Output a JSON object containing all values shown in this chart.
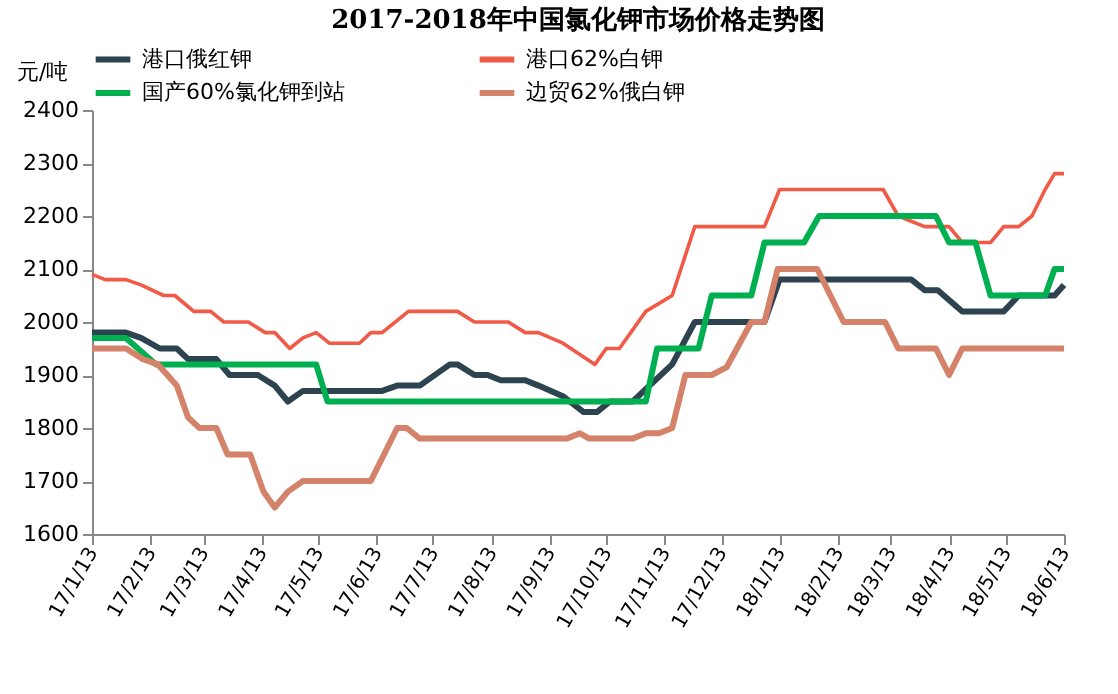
{
  "chart_data": {
    "type": "line",
    "title": "2017-2018年中国氯化钾市场价格走势图",
    "ylabel": "元/吨",
    "ylim": [
      1600,
      2400
    ],
    "yticks": [
      1600,
      1700,
      1800,
      1900,
      2000,
      2100,
      2200,
      2300,
      2400
    ],
    "xlim": [
      "2017-01-13",
      "2018-06-13"
    ],
    "xticks": [
      {
        "value": "2017-01-13",
        "label": "17/1/13"
      },
      {
        "value": "2017-02-13",
        "label": "17/2/13"
      },
      {
        "value": "2017-03-13",
        "label": "17/3/13"
      },
      {
        "value": "2017-04-13",
        "label": "17/4/13"
      },
      {
        "value": "2017-05-13",
        "label": "17/5/13"
      },
      {
        "value": "2017-06-13",
        "label": "17/6/13"
      },
      {
        "value": "2017-07-13",
        "label": "17/7/13"
      },
      {
        "value": "2017-08-13",
        "label": "17/8/13"
      },
      {
        "value": "2017-09-13",
        "label": "17/9/13"
      },
      {
        "value": "2017-10-13",
        "label": "17/10/13"
      },
      {
        "value": "2017-11-13",
        "label": "17/11/13"
      },
      {
        "value": "2017-12-13",
        "label": "17/12/13"
      },
      {
        "value": "2018-01-13",
        "label": "18/1/13"
      },
      {
        "value": "2018-02-13",
        "label": "18/2/13"
      },
      {
        "value": "2018-03-13",
        "label": "18/3/13"
      },
      {
        "value": "2018-04-13",
        "label": "18/4/13"
      },
      {
        "value": "2018-05-13",
        "label": "18/5/13"
      },
      {
        "value": "2018-06-13",
        "label": "18/6/13"
      }
    ],
    "grid": false,
    "legend": "top",
    "marker": "none",
    "line_style": "solid",
    "series": [
      {
        "name": "港口俄红钾",
        "color": "#2e4350",
        "x": [
          "2017-01-13",
          "2017-01-31",
          "2017-02-08",
          "2017-02-18",
          "2017-02-27",
          "2017-03-05",
          "2017-03-20",
          "2017-03-27",
          "2017-04-11",
          "2017-04-20",
          "2017-04-27",
          "2017-05-05",
          "2017-06-16",
          "2017-06-24",
          "2017-07-06",
          "2017-07-22",
          "2017-07-26",
          "2017-08-04",
          "2017-08-11",
          "2017-08-18",
          "2017-08-31",
          "2017-09-07",
          "2017-09-20",
          "2017-10-01",
          "2017-10-08",
          "2017-10-15",
          "2017-10-27",
          "2017-11-17",
          "2017-11-29",
          "2018-01-05",
          "2018-01-13",
          "2018-03-24",
          "2018-03-31",
          "2018-04-07",
          "2018-04-20",
          "2018-05-12",
          "2018-05-20",
          "2018-06-08",
          "2018-06-13"
        ],
        "values": [
          1980,
          1980,
          1970,
          1950,
          1950,
          1930,
          1930,
          1900,
          1900,
          1880,
          1850,
          1870,
          1870,
          1880,
          1880,
          1920,
          1920,
          1900,
          1900,
          1890,
          1890,
          1880,
          1860,
          1830,
          1830,
          1850,
          1850,
          1920,
          2000,
          2000,
          2080,
          2080,
          2060,
          2060,
          2020,
          2020,
          2050,
          2050,
          2070
        ]
      },
      {
        "name": "港口62%白钾",
        "color": "#f05a46",
        "x": [
          "2017-01-13",
          "2017-01-20",
          "2017-01-31",
          "2017-02-08",
          "2017-02-20",
          "2017-02-26",
          "2017-03-08",
          "2017-03-17",
          "2017-03-24",
          "2017-04-06",
          "2017-04-15",
          "2017-04-20",
          "2017-04-28",
          "2017-05-05",
          "2017-05-12",
          "2017-05-19",
          "2017-06-04",
          "2017-06-10",
          "2017-06-16",
          "2017-06-30",
          "2017-07-26",
          "2017-08-04",
          "2017-08-22",
          "2017-08-31",
          "2017-09-07",
          "2017-09-20",
          "2017-10-07",
          "2017-10-13",
          "2017-10-20",
          "2017-11-03",
          "2017-11-17",
          "2017-11-29",
          "2018-01-05",
          "2018-01-13",
          "2018-03-09",
          "2018-03-17",
          "2018-03-31",
          "2018-04-13",
          "2018-04-20",
          "2018-05-05",
          "2018-05-12",
          "2018-05-20",
          "2018-05-27",
          "2018-06-03",
          "2018-06-08",
          "2018-06-13"
        ],
        "values": [
          2090,
          2080,
          2080,
          2070,
          2050,
          2050,
          2020,
          2020,
          2000,
          2000,
          1980,
          1980,
          1950,
          1970,
          1980,
          1960,
          1960,
          1980,
          1980,
          2020,
          2020,
          2000,
          2000,
          1980,
          1980,
          1960,
          1920,
          1950,
          1950,
          2020,
          2050,
          2180,
          2180,
          2250,
          2250,
          2200,
          2180,
          2180,
          2150,
          2150,
          2180,
          2180,
          2200,
          2250,
          2280,
          2280
        ]
      },
      {
        "name": "国产60%氯化钾到站",
        "color": "#00b050",
        "x": [
          "2017-01-13",
          "2017-01-31",
          "2017-02-16",
          "2017-05-12",
          "2017-05-18",
          "2017-11-03",
          "2017-11-09",
          "2017-12-01",
          "2017-12-08",
          "2017-12-29",
          "2018-01-05",
          "2018-01-26",
          "2018-02-03",
          "2018-04-06",
          "2018-04-13",
          "2018-04-27",
          "2018-05-05",
          "2018-06-03",
          "2018-06-08",
          "2018-06-13"
        ],
        "values": [
          1970,
          1970,
          1920,
          1920,
          1850,
          1850,
          1950,
          1950,
          2050,
          2050,
          2150,
          2150,
          2200,
          2200,
          2150,
          2150,
          2050,
          2050,
          2100,
          2100
        ]
      },
      {
        "name": "边贸62%俄白钾",
        "color": "#d4836a",
        "x": [
          "2017-01-13",
          "2017-01-31",
          "2017-02-09",
          "2017-02-17",
          "2017-02-27",
          "2017-03-05",
          "2017-03-11",
          "2017-03-20",
          "2017-03-26",
          "2017-04-07",
          "2017-04-14",
          "2017-04-20",
          "2017-04-27",
          "2017-05-05",
          "2017-06-10",
          "2017-06-17",
          "2017-06-24",
          "2017-06-29",
          "2017-07-06",
          "2017-09-22",
          "2017-09-29",
          "2017-10-04",
          "2017-10-27",
          "2017-11-03",
          "2017-11-10",
          "2017-11-17",
          "2017-11-24",
          "2017-12-08",
          "2017-12-16",
          "2017-12-29",
          "2018-01-05",
          "2018-01-12",
          "2018-02-02",
          "2018-02-16",
          "2018-03-10",
          "2018-03-17",
          "2018-04-06",
          "2018-04-13",
          "2018-04-20",
          "2018-06-13"
        ],
        "values": [
          1950,
          1950,
          1930,
          1920,
          1880,
          1820,
          1800,
          1800,
          1750,
          1750,
          1680,
          1650,
          1680,
          1700,
          1700,
          1750,
          1800,
          1800,
          1780,
          1780,
          1790,
          1780,
          1780,
          1790,
          1790,
          1800,
          1900,
          1900,
          1915,
          2000,
          2000,
          2100,
          2100,
          2000,
          2000,
          1950,
          1950,
          1900,
          1950,
          1950
        ]
      }
    ]
  }
}
